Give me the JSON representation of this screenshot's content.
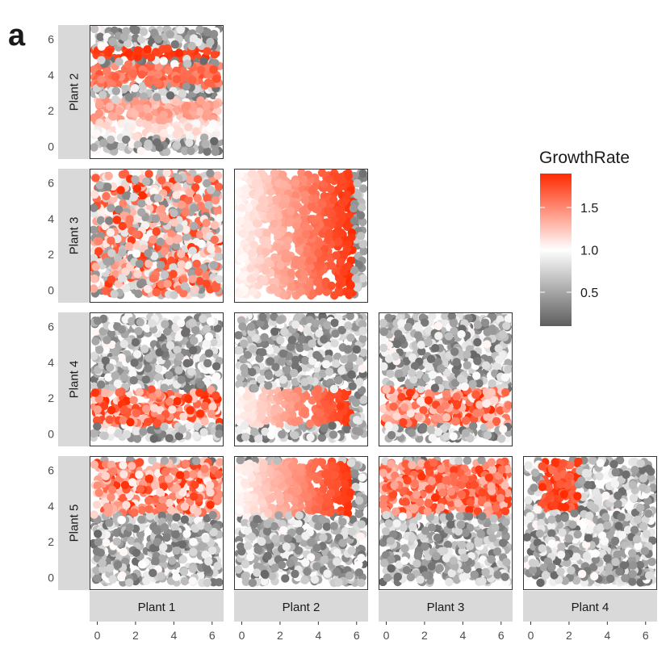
{
  "figure": {
    "panel_letter": "a"
  },
  "chart_data": {
    "type": "scatter",
    "layout": "lower-triangle facet matrix",
    "column_facets": [
      "Plant 1",
      "Plant 2",
      "Plant 3",
      "Plant 4"
    ],
    "row_facets": [
      "Plant 2",
      "Plant 3",
      "Plant 4",
      "Plant 5"
    ],
    "xlim": [
      -0.4,
      6.6
    ],
    "ylim": [
      -0.7,
      6.8
    ],
    "x_ticks": [
      0,
      2,
      4,
      6
    ],
    "y_ticks": [
      0,
      2,
      4,
      6
    ],
    "xlabel": "",
    "ylabel": "",
    "grid": false,
    "legend": {
      "title": "GrowthRate",
      "placement": "right",
      "range": [
        0.1,
        1.9
      ],
      "ticks": [
        0.5,
        1.0,
        1.5
      ],
      "tick_labels": [
        "0.5",
        "1.0",
        "1.5"
      ],
      "colors": {
        "low": "#5e5e5e",
        "mid": "#ffffff",
        "high": "#ff2a00"
      },
      "midpoint": 1.0
    },
    "panels": [
      {
        "row": "Plant 2",
        "col": "Plant 1",
        "pattern": "horizontal bands: y≈5.2 high (~1.9), y≈4 (~1.6), y≈2 (~1.4), y≈0.5–1.5 (~1.1), background mixed ~0.6"
      },
      {
        "row": "Plant 3",
        "col": "Plant 1",
        "pattern": "scattered mixed growth rates 0.4–1.9 across whole area"
      },
      {
        "row": "Plant 3",
        "col": "Plant 2",
        "pattern": "vertical gradient: x≈0 (~1.1) increasing to x≈5.5 (~1.9), x>5.8 low (~0.5)"
      },
      {
        "row": "Plant 4",
        "col": "Plant 1",
        "pattern": "band y 0.5–2.5 high mixed (~1.2–1.9), elsewhere low (~0.5–1.0)"
      },
      {
        "row": "Plant 4",
        "col": "Plant 2",
        "pattern": "band y 0.5–2.5 with gradient along x from ~1.1 to ~1.9, elsewhere low"
      },
      {
        "row": "Plant 4",
        "col": "Plant 3",
        "pattern": "band y 0.5–2.5 mixed (~1.1–1.9), elsewhere low"
      },
      {
        "row": "Plant 5",
        "col": "Plant 1",
        "pattern": "band y 3.5–6.5 mixed high (~1.1–1.9), elsewhere low"
      },
      {
        "row": "Plant 5",
        "col": "Plant 2",
        "pattern": "band y 3.5–6.5 with gradient along x from ~1.1 to ~1.9, elsewhere low"
      },
      {
        "row": "Plant 5",
        "col": "Plant 3",
        "pattern": "band y 3.5–6.5 mixed high (~1.3–1.9), elsewhere low"
      },
      {
        "row": "Plant 5",
        "col": "Plant 4",
        "pattern": "block x 0.5–2.5, y 3.7–6.5 high (~1.6–1.9), elsewhere low"
      }
    ]
  }
}
